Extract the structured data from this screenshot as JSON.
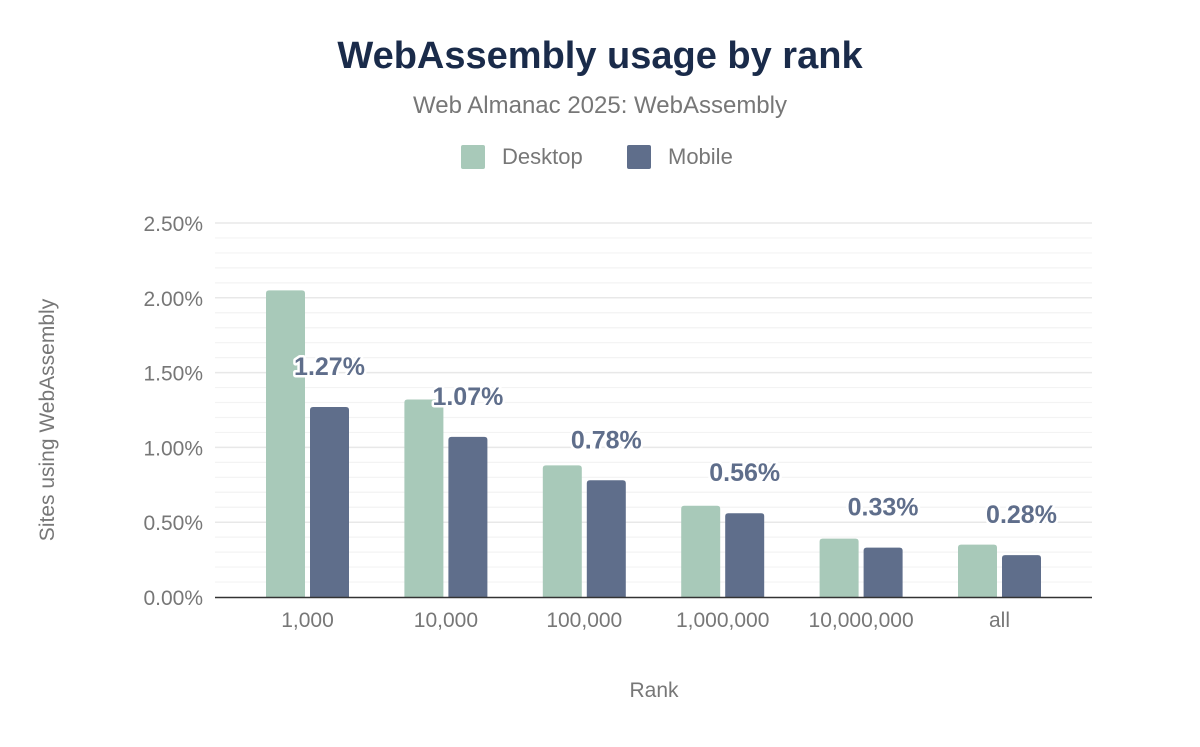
{
  "chart_data": {
    "type": "bar",
    "title": "WebAssembly usage by rank",
    "subtitle": "Web Almanac 2025: WebAssembly",
    "xlabel": "Rank",
    "ylabel": "Sites using WebAssembly",
    "categories": [
      "1,000",
      "10,000",
      "100,000",
      "1,000,000",
      "10,000,000",
      "all"
    ],
    "series": [
      {
        "name": "Desktop",
        "color": "#a8c9b9",
        "values": [
          2.05,
          1.32,
          0.88,
          0.61,
          0.39,
          0.35
        ],
        "labels": [
          "",
          "",
          "",
          "",
          "",
          ""
        ]
      },
      {
        "name": "Mobile",
        "color": "#5f6e8b",
        "values": [
          1.27,
          1.07,
          0.78,
          0.56,
          0.33,
          0.28
        ],
        "labels": [
          "1.27%",
          "1.07%",
          "0.78%",
          "0.56%",
          "0.33%",
          "0.28%"
        ]
      }
    ],
    "ylim": [
      0,
      2.5
    ],
    "yticks": [
      "0.00%",
      "0.50%",
      "1.00%",
      "1.50%",
      "2.00%",
      "2.50%"
    ],
    "grid": true,
    "legend_position": "top-center",
    "title_color": "#1a2b4a"
  }
}
